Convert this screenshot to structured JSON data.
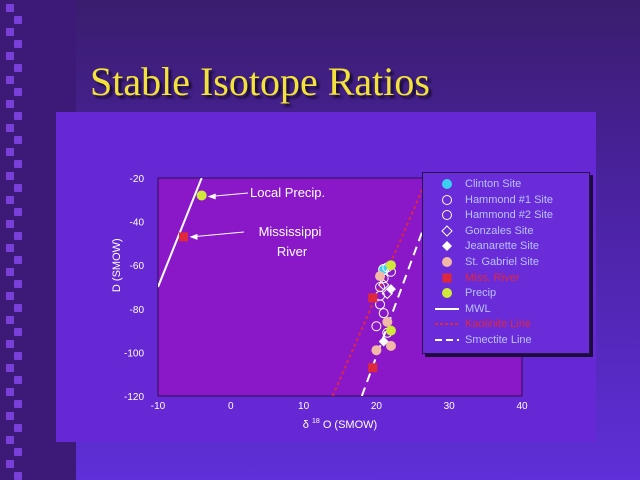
{
  "slide": {
    "title": "Stable Isotope Ratios"
  },
  "chart_data": {
    "type": "scatter",
    "xlabel_prefix": "δ",
    "xlabel_sup": "18",
    "xlabel_main": "O (SMOW)",
    "ylabel": "D (SMOW)",
    "xlim": [
      -10,
      40
    ],
    "ylim": [
      -120,
      -20
    ],
    "x_ticks": [
      "-10",
      "0",
      "10",
      "20",
      "30",
      "40"
    ],
    "y_ticks": [
      "-20",
      "-40",
      "-60",
      "-80",
      "-100",
      "-120"
    ],
    "annotations": {
      "local_precip": "Local Precip.",
      "miss_line1": "Mississippi",
      "miss_line2": "River"
    },
    "legend": [
      {
        "key": "clinton",
        "label": "Clinton Site",
        "color": "#3ad0f2"
      },
      {
        "key": "hammond1",
        "label": "Hammond #1 Site",
        "color": "#ffffff"
      },
      {
        "key": "hammond2",
        "label": "Hammond #2 Site",
        "color": "#ffffff"
      },
      {
        "key": "gonzales",
        "label": "Gonzales Site",
        "color": "#ffffff"
      },
      {
        "key": "jeanarette",
        "label": "Jeanarette Site",
        "color": "#ffffff"
      },
      {
        "key": "stgabriel",
        "label": "St. Gabriel Site",
        "color": "#f2b8a8"
      },
      {
        "key": "miss",
        "label": "Miss. River",
        "color": "#e0283c"
      },
      {
        "key": "precip",
        "label": "Precip",
        "color": "#d0e83a"
      },
      {
        "key": "mwl",
        "label": "MWL",
        "color": "#ffffff"
      },
      {
        "key": "kaolinite",
        "label": "Kaolinite Line",
        "color": "#e0283c"
      },
      {
        "key": "smectite",
        "label": "Smectite Line",
        "color": "#ffffff"
      }
    ],
    "series": [
      {
        "name": "Clinton Site",
        "points": [
          [
            21,
            -62
          ]
        ]
      },
      {
        "name": "Hammond #1 Site",
        "points": [
          [
            21.5,
            -61
          ],
          [
            21,
            -66
          ],
          [
            20.5,
            -74
          ],
          [
            20.5,
            -78
          ],
          [
            20,
            -88
          ]
        ]
      },
      {
        "name": "Hammond #2 Site",
        "points": [
          [
            22,
            -63
          ],
          [
            20.5,
            -70
          ],
          [
            21,
            -82
          ],
          [
            21.5,
            -91
          ]
        ]
      },
      {
        "name": "Gonzales Site",
        "points": [
          [
            21,
            -69
          ],
          [
            21.5,
            -73
          ]
        ]
      },
      {
        "name": "Jeanarette Site",
        "points": [
          [
            22,
            -71
          ],
          [
            21,
            -95
          ]
        ]
      },
      {
        "name": "St. Gabriel Site",
        "points": [
          [
            20.5,
            -65
          ],
          [
            21.5,
            -86
          ],
          [
            22,
            -97
          ],
          [
            20,
            -99
          ]
        ]
      },
      {
        "name": "Miss. River",
        "points": [
          [
            -6.5,
            -47
          ],
          [
            19.5,
            -75
          ],
          [
            19.5,
            -107
          ]
        ]
      },
      {
        "name": "Precip",
        "points": [
          [
            -4,
            -28
          ],
          [
            22,
            -60
          ],
          [
            22,
            -90
          ]
        ]
      },
      {
        "name": "MWL",
        "line": [
          [
            -10,
            -70
          ],
          [
            -4,
            -20
          ]
        ]
      },
      {
        "name": "Kaolinite Line",
        "line": [
          [
            14,
            -120
          ],
          [
            27,
            -20
          ]
        ]
      },
      {
        "name": "Smectite Line",
        "line": [
          [
            18,
            -120
          ],
          [
            29,
            -20
          ]
        ]
      }
    ]
  }
}
